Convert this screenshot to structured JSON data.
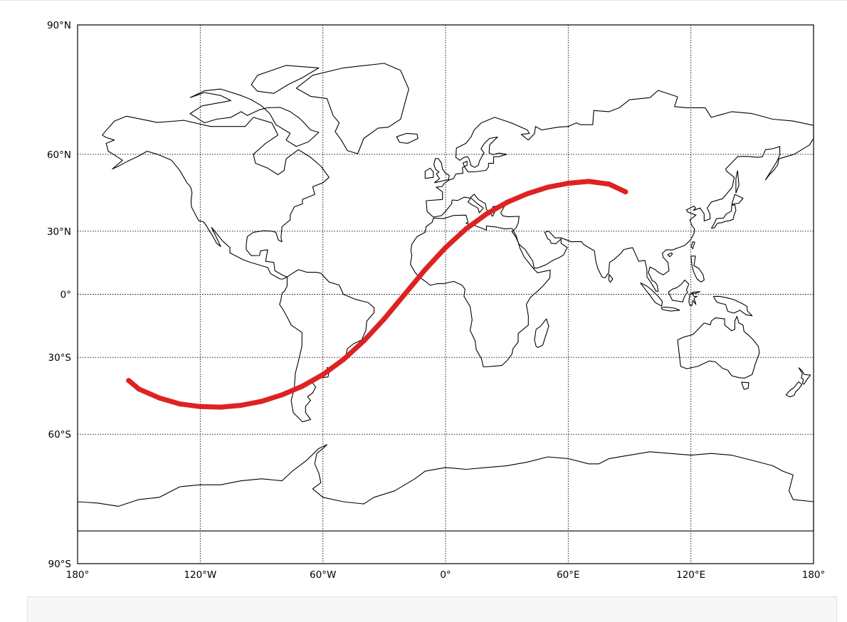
{
  "map": {
    "projection": "cylindrical (Miller)",
    "lon_range": [
      -180,
      180
    ],
    "lat_range": [
      -90,
      90
    ],
    "meridians": [
      -180,
      -120,
      -60,
      0,
      60,
      120,
      180
    ],
    "parallels": [
      -90,
      -60,
      -30,
      0,
      30,
      60,
      90
    ],
    "lon_labels": [
      "180°",
      "120°W",
      "60°W",
      "0°",
      "60°E",
      "120°E",
      "180°"
    ],
    "lat_labels": [
      "90°S",
      "60°S",
      "30°S",
      "0°",
      "30°N",
      "60°N",
      "90°N"
    ],
    "grid": "dotted",
    "coastline_color": "#000000",
    "track_color": "#dd2222"
  },
  "track": {
    "description_none": "",
    "points": [
      [
        -155,
        -40
      ],
      [
        -150,
        -43.5
      ],
      [
        -140,
        -47
      ],
      [
        -130,
        -49.3
      ],
      [
        -120,
        -50.3
      ],
      [
        -110,
        -50.5
      ],
      [
        -100,
        -49.8
      ],
      [
        -90,
        -48.3
      ],
      [
        -80,
        -45.8
      ],
      [
        -70,
        -42.3
      ],
      [
        -60,
        -37.5
      ],
      [
        -50,
        -31
      ],
      [
        -40,
        -22.5
      ],
      [
        -30,
        -12
      ],
      [
        -20,
        0
      ],
      [
        -10,
        12
      ],
      [
        0,
        22.5
      ],
      [
        10,
        31
      ],
      [
        20,
        37.5
      ],
      [
        30,
        42.3
      ],
      [
        40,
        45.8
      ],
      [
        50,
        48.3
      ],
      [
        60,
        49.8
      ],
      [
        70,
        50.5
      ],
      [
        80,
        49.5
      ],
      [
        88,
        46.5
      ]
    ]
  }
}
